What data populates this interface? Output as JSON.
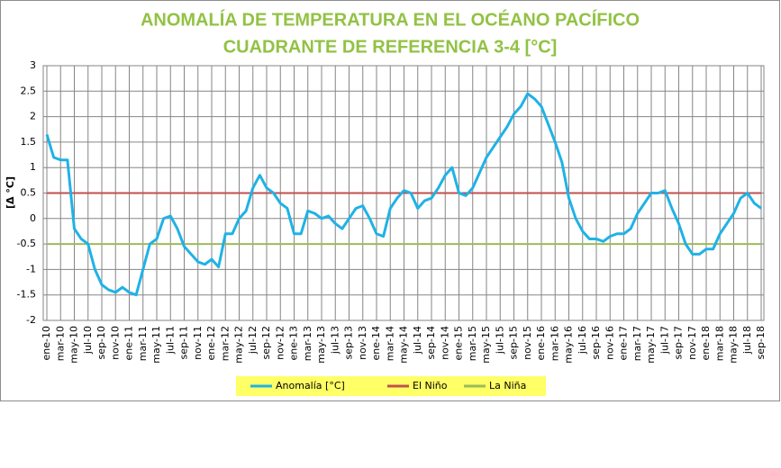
{
  "chart_data": {
    "type": "line",
    "title": "ANOMALÍA DE TEMPERATURA EN EL OCÉANO PACÍFICO",
    "subtitle": "CUADRANTE DE REFERENCIA 3-4 [°C]",
    "y_label": "[Δ °C]",
    "categories": [
      "ene-10",
      null,
      "mar-10",
      null,
      "may-10",
      null,
      "jul-10",
      null,
      "sep-10",
      null,
      "nov-10",
      null,
      "ene-11",
      null,
      "mar-11",
      null,
      "may-11",
      null,
      "jul-11",
      null,
      "sep-11",
      null,
      "nov-11",
      null,
      "ene-12",
      null,
      "mar-12",
      null,
      "may-12",
      null,
      "jul-12",
      null,
      "sep-12",
      null,
      "nov-12",
      null,
      "ene-13",
      null,
      "mar-13",
      null,
      "may-13",
      null,
      "jul-13",
      null,
      "sep-13",
      null,
      "nov-13",
      null,
      "ene-14",
      null,
      "mar-14",
      null,
      "may-14",
      null,
      "jul-14",
      null,
      "sep-14",
      null,
      "nov-14",
      null,
      "ene-15",
      null,
      "mar-15",
      null,
      "may-15",
      null,
      "jul-15",
      null,
      "sep-15",
      null,
      "nov-15",
      null,
      "ene-16",
      null,
      "mar-16",
      null,
      "may-16",
      null,
      "jul-16",
      null,
      "sep-16",
      null,
      "nov-16",
      null,
      "ene-17",
      null,
      "mar-17",
      null,
      "may-17",
      null,
      "jul-17",
      null,
      "sep-17",
      null,
      "nov-17",
      null,
      "ene-18",
      null,
      "mar-18",
      null,
      "may-18",
      null,
      "jul-18",
      null,
      "sep-18"
    ],
    "series": [
      {
        "name": "Anomalía [°C]",
        "color": "#1fb2e6",
        "values": [
          1.65,
          1.2,
          1.15,
          1.15,
          -0.2,
          -0.4,
          -0.5,
          -1.0,
          -1.3,
          -1.4,
          -1.45,
          -1.35,
          -1.45,
          -1.5,
          -1.0,
          -0.5,
          -0.4,
          0.0,
          0.05,
          -0.2,
          -0.55,
          -0.7,
          -0.85,
          -0.9,
          -0.8,
          -0.95,
          -0.3,
          -0.3,
          0.0,
          0.15,
          0.6,
          0.85,
          0.6,
          0.5,
          0.3,
          0.2,
          -0.3,
          -0.3,
          0.15,
          0.1,
          0.0,
          0.05,
          -0.1,
          -0.2,
          0.0,
          0.2,
          0.25,
          0.0,
          -0.3,
          -0.35,
          0.2,
          0.4,
          0.55,
          0.5,
          0.2,
          0.35,
          0.4,
          0.6,
          0.85,
          1.0,
          0.5,
          0.45,
          0.6,
          0.9,
          1.2,
          1.4,
          1.6,
          1.8,
          2.05,
          2.2,
          2.45,
          2.35,
          2.2,
          1.85,
          1.5,
          1.1,
          0.4,
          0.0,
          -0.25,
          -0.4,
          -0.4,
          -0.45,
          -0.35,
          -0.3,
          -0.3,
          -0.2,
          0.1,
          0.3,
          0.5,
          0.5,
          0.55,
          0.2,
          -0.1,
          -0.5,
          -0.7,
          -0.7,
          -0.6,
          -0.6,
          -0.3,
          -0.1,
          0.1,
          0.4,
          0.5,
          0.3,
          0.2
        ]
      },
      {
        "name": "El Niño",
        "color": "#c0504d",
        "values": [
          0.5,
          0.5,
          0.5,
          0.5,
          0.5,
          0.5,
          0.5,
          0.5,
          0.5,
          0.5,
          0.5,
          0.5,
          0.5,
          0.5,
          0.5,
          0.5,
          0.5,
          0.5,
          0.5,
          0.5,
          0.5,
          0.5,
          0.5,
          0.5,
          0.5,
          0.5,
          0.5,
          0.5,
          0.5,
          0.5,
          0.5,
          0.5,
          0.5,
          0.5,
          0.5,
          0.5,
          0.5,
          0.5,
          0.5,
          0.5,
          0.5,
          0.5,
          0.5,
          0.5,
          0.5,
          0.5,
          0.5,
          0.5,
          0.5,
          0.5,
          0.5,
          0.5,
          0.5,
          0.5,
          0.5,
          0.5,
          0.5,
          0.5,
          0.5,
          0.5,
          0.5,
          0.5,
          0.5,
          0.5,
          0.5,
          0.5,
          0.5,
          0.5,
          0.5,
          0.5,
          0.5,
          0.5,
          0.5,
          0.5,
          0.5,
          0.5,
          0.5,
          0.5,
          0.5,
          0.5,
          0.5,
          0.5,
          0.5,
          0.5,
          0.5,
          0.5,
          0.5,
          0.5,
          0.5,
          0.5,
          0.5,
          0.5,
          0.5,
          0.5,
          0.5,
          0.5,
          0.5,
          0.5,
          0.5,
          0.5,
          0.5,
          0.5,
          0.5,
          0.5,
          0.5
        ]
      },
      {
        "name": "La Niña",
        "color": "#9bbb59",
        "values": [
          -0.5,
          -0.5,
          -0.5,
          -0.5,
          -0.5,
          -0.5,
          -0.5,
          -0.5,
          -0.5,
          -0.5,
          -0.5,
          -0.5,
          -0.5,
          -0.5,
          -0.5,
          -0.5,
          -0.5,
          -0.5,
          -0.5,
          -0.5,
          -0.5,
          -0.5,
          -0.5,
          -0.5,
          -0.5,
          -0.5,
          -0.5,
          -0.5,
          -0.5,
          -0.5,
          -0.5,
          -0.5,
          -0.5,
          -0.5,
          -0.5,
          -0.5,
          -0.5,
          -0.5,
          -0.5,
          -0.5,
          -0.5,
          -0.5,
          -0.5,
          -0.5,
          -0.5,
          -0.5,
          -0.5,
          -0.5,
          -0.5,
          -0.5,
          -0.5,
          -0.5,
          -0.5,
          -0.5,
          -0.5,
          -0.5,
          -0.5,
          -0.5,
          -0.5,
          -0.5,
          -0.5,
          -0.5,
          -0.5,
          -0.5,
          -0.5,
          -0.5,
          -0.5,
          -0.5,
          -0.5,
          -0.5,
          -0.5,
          -0.5,
          -0.5,
          -0.5,
          -0.5,
          -0.5,
          -0.5,
          -0.5,
          -0.5,
          -0.5,
          -0.5,
          -0.5,
          -0.5,
          -0.5,
          -0.5,
          -0.5,
          -0.5,
          -0.5,
          -0.5,
          -0.5,
          -0.5,
          -0.5,
          -0.5,
          -0.5,
          -0.5,
          -0.5,
          -0.5,
          -0.5,
          -0.5,
          -0.5,
          -0.5,
          -0.5,
          -0.5,
          -0.5,
          -0.5
        ]
      }
    ],
    "ylim": [
      -2,
      3
    ],
    "yticks": [
      -2,
      -1.5,
      -1,
      -0.5,
      0,
      0.5,
      1,
      1.5,
      2,
      2.5,
      3
    ],
    "grid": true,
    "legend": "bottom"
  }
}
